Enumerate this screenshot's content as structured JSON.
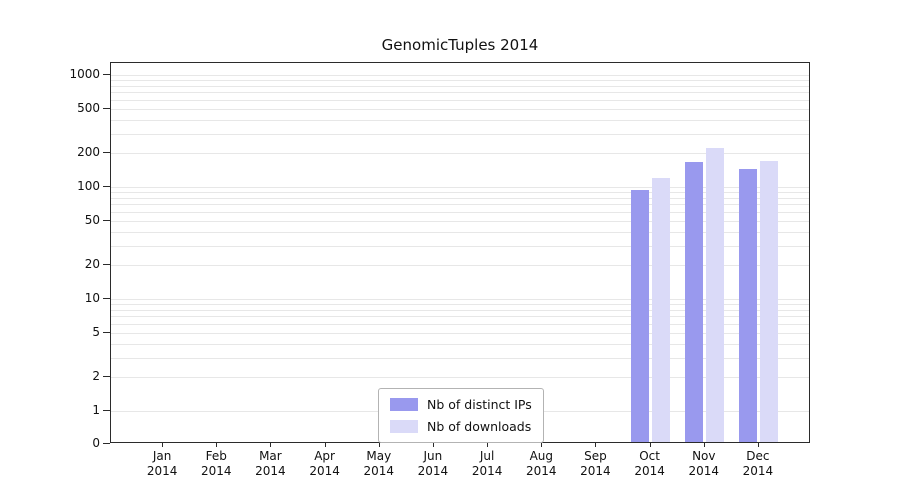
{
  "chart_data": {
    "type": "bar",
    "title": "GenomicTuples 2014",
    "xlabel": "",
    "ylabel": "",
    "yscale": "log-with-zero-baseline",
    "yticks": [
      0,
      1,
      2,
      5,
      10,
      20,
      50,
      100,
      200,
      500,
      1000
    ],
    "grid": "horizontal light minor log gridlines",
    "legend_position": "bottom-center-inside",
    "categories": [
      "Jan",
      "Feb",
      "Mar",
      "Apr",
      "May",
      "Jun",
      "Jul",
      "Aug",
      "Sep",
      "Oct",
      "Nov",
      "Dec"
    ],
    "category_year": "2014",
    "series": [
      {
        "name": "Nb of distinct IPs",
        "color": "#9999ee",
        "values": [
          null,
          null,
          null,
          null,
          null,
          null,
          null,
          null,
          null,
          90,
          160,
          140
        ]
      },
      {
        "name": "Nb of downloads",
        "color": "#dadaf8",
        "values": [
          null,
          null,
          null,
          null,
          null,
          null,
          null,
          null,
          null,
          115,
          215,
          165
        ]
      }
    ]
  }
}
